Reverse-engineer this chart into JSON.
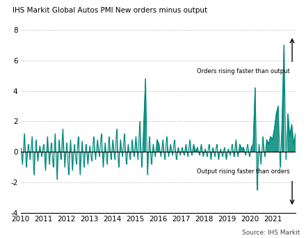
{
  "title": "IHS Markit Global Autos PMI New orders minus output",
  "source": "Source: IHS Markit",
  "line_color": "#00897B",
  "background_color": "#ffffff",
  "ylim": [
    -4,
    8
  ],
  "yticks": [
    -4,
    -2,
    0,
    2,
    4,
    6,
    8
  ],
  "xlabel_years": [
    "2010",
    "2011",
    "2012",
    "2013",
    "2014",
    "2015",
    "2016",
    "2017",
    "2018",
    "2019",
    "2020",
    "2021"
  ],
  "annotation_up": "Orders rising faster than output",
  "annotation_down": "Output rising faster than orders",
  "xlim_start": 2010,
  "xlim_end": 2022,
  "vals": [
    0.3,
    -0.8,
    1.2,
    -1.0,
    0.5,
    -0.5,
    1.0,
    -1.5,
    0.8,
    -0.6,
    0.4,
    -0.3,
    0.5,
    -1.2,
    1.0,
    -0.8,
    0.6,
    -1.0,
    1.2,
    -1.8,
    0.8,
    -0.5,
    1.5,
    -1.0,
    0.6,
    -1.5,
    0.8,
    -1.2,
    0.5,
    -0.8,
    1.0,
    -1.5,
    0.7,
    -1.0,
    0.5,
    -0.8,
    0.4,
    -0.6,
    1.0,
    -0.5,
    0.8,
    -0.3,
    1.2,
    -1.0,
    0.6,
    -0.8,
    1.0,
    -0.5,
    0.8,
    -0.5,
    1.5,
    -1.0,
    0.8,
    -0.3,
    1.2,
    -0.8,
    0.5,
    -0.5,
    0.8,
    -0.3,
    1.0,
    -0.5,
    2.0,
    -1.0,
    1.5,
    4.8,
    -1.5,
    1.0,
    -0.8,
    0.5,
    -0.3,
    0.8,
    0.5,
    -0.3,
    0.8,
    -0.5,
    1.0,
    -0.3,
    0.5,
    -0.2,
    0.8,
    -0.5,
    0.3,
    -0.2,
    0.3,
    -0.2,
    0.5,
    -0.3,
    0.8,
    -0.2,
    0.5,
    0.0,
    0.3,
    -0.2,
    0.5,
    -0.3,
    0.2,
    -0.3,
    0.5,
    -0.5,
    0.3,
    -0.3,
    0.5,
    -0.5,
    0.2,
    -0.3,
    0.3,
    -0.5,
    0.2,
    -0.2,
    0.5,
    -0.3,
    0.8,
    -0.3,
    0.5,
    0.2,
    0.3,
    -0.2,
    0.5,
    -0.3,
    0.3,
    0.5,
    4.2,
    -2.5,
    0.5,
    -0.8,
    1.0,
    -0.3,
    0.8,
    0.5,
    1.0,
    0.8,
    1.5,
    2.5,
    3.0,
    -1.0,
    2.0,
    7.0,
    -0.5,
    2.5,
    1.0,
    1.8,
    0.5,
    1.2
  ]
}
